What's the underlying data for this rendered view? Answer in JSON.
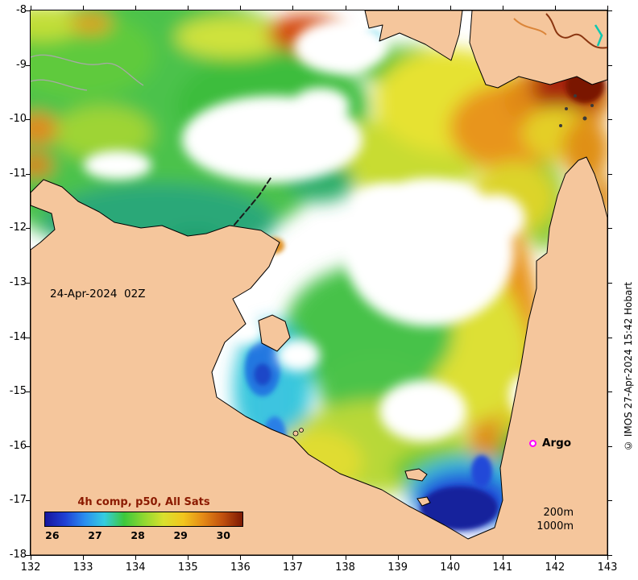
{
  "axes": {
    "lat_ticks": [
      "-8",
      "-9",
      "-10",
      "-11",
      "-12",
      "-13",
      "-14",
      "-15",
      "-16",
      "-17",
      "-18"
    ],
    "lon_ticks": [
      "132",
      "133",
      "134",
      "135",
      "136",
      "137",
      "138",
      "139",
      "140",
      "141",
      "142",
      "143"
    ]
  },
  "map": {
    "date_label": "24-Apr-2024  02Z",
    "argo_label": "Argo",
    "argo_color": "#ff00ff",
    "depth_labels": [
      "200m",
      "1000m"
    ],
    "land_color": "#f5c69c",
    "sea_no_data_color": "#ffffff"
  },
  "colorbar": {
    "title": "4h comp, p50, All Sats",
    "title_color": "#8b1a00",
    "tick_labels": [
      "26",
      "27",
      "28",
      "29",
      "30"
    ],
    "tick_positions_pct": [
      4,
      25.5,
      47,
      68.5,
      90
    ],
    "gradient": [
      "#16169e",
      "#1f3fd4",
      "#2a8df0",
      "#35cde0",
      "#3cc83c",
      "#8fd830",
      "#d9e02e",
      "#f2c61e",
      "#e58a16",
      "#c1500e",
      "#7d1a04"
    ]
  },
  "attribution": "© IMOS 27-Apr-2024 15:42 Hobart",
  "chart_data": {
    "type": "heatmap",
    "title": "4h comp, p50, All Sats",
    "timestamp_label": "24-Apr-2024 02Z",
    "lon_ticks": [
      132,
      133,
      134,
      135,
      136,
      137,
      138,
      139,
      140,
      141,
      142,
      143
    ],
    "lat_ticks": [
      -8,
      -9,
      -10,
      -11,
      -12,
      -13,
      -14,
      -15,
      -16,
      -17,
      -18
    ],
    "colorbar_ticks": [
      26,
      27,
      28,
      29,
      30
    ],
    "point_annotations": [
      "Argo"
    ],
    "contour_annotations": [
      "200m",
      "1000m"
    ]
  }
}
